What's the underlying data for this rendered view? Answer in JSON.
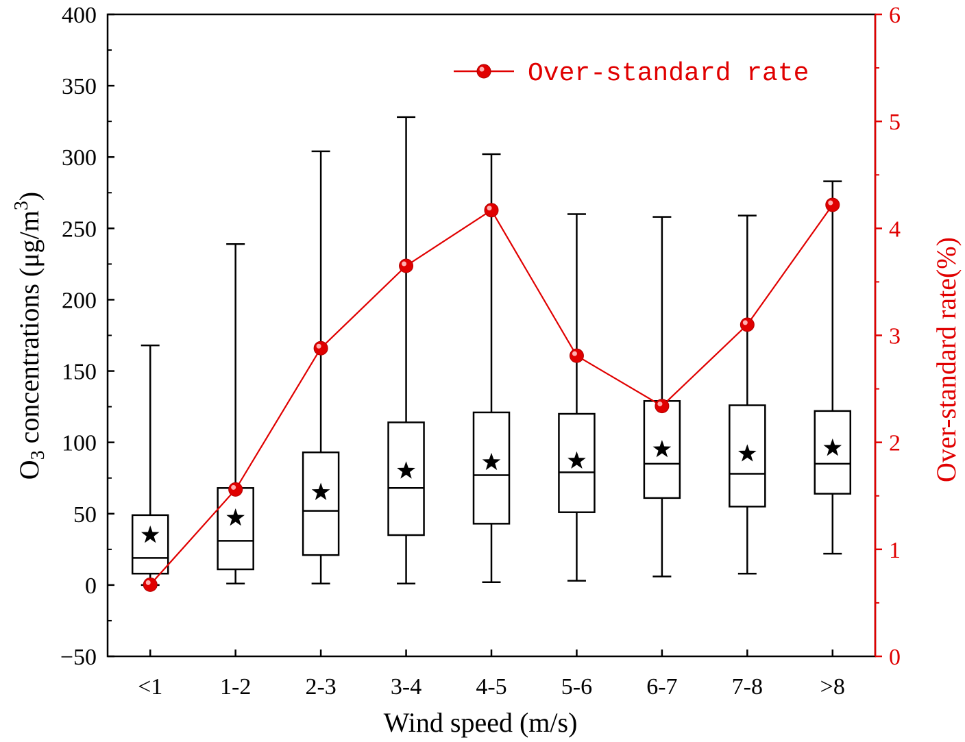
{
  "chart_data": {
    "type": "box+line",
    "xlabel": "Wind speed (m/s)",
    "ylabel_prefix": "O",
    "ylabel_sub": "3",
    "ylabel_mid": " concentrations (μg/m",
    "ylabel_sup": "3",
    "ylabel_end": ")",
    "y2label": "Over-standard rate(%)",
    "categories": [
      "<1",
      "1-2",
      "2-3",
      "3-4",
      "4-5",
      "5-6",
      "6-7",
      "7-8",
      ">8"
    ],
    "ylim": [
      -50,
      400
    ],
    "y_ticks": [
      -50,
      0,
      50,
      100,
      150,
      200,
      250,
      300,
      350,
      400
    ],
    "y_tick_labels": [
      "−50",
      "0",
      "50",
      "100",
      "150",
      "200",
      "250",
      "300",
      "350",
      "400"
    ],
    "y2lim": [
      0,
      6
    ],
    "y2_ticks": [
      0,
      1,
      2,
      3,
      4,
      5,
      6
    ],
    "y2_tick_labels": [
      "0",
      "1",
      "2",
      "3",
      "4",
      "5",
      "6"
    ],
    "boxes": [
      {
        "category": "<1",
        "whisker_low": 0,
        "q1": 8,
        "median": 19,
        "q3": 49,
        "whisker_high": 168,
        "mean": 35
      },
      {
        "category": "1-2",
        "whisker_low": 1,
        "q1": 11,
        "median": 31,
        "q3": 68,
        "whisker_high": 239,
        "mean": 47
      },
      {
        "category": "2-3",
        "whisker_low": 1,
        "q1": 21,
        "median": 52,
        "q3": 93,
        "whisker_high": 304,
        "mean": 65
      },
      {
        "category": "3-4",
        "whisker_low": 1,
        "q1": 35,
        "median": 68,
        "q3": 114,
        "whisker_high": 328,
        "mean": 80
      },
      {
        "category": "4-5",
        "whisker_low": 2,
        "q1": 43,
        "median": 77,
        "q3": 121,
        "whisker_high": 302,
        "mean": 86
      },
      {
        "category": "5-6",
        "whisker_low": 3,
        "q1": 51,
        "median": 79,
        "q3": 120,
        "whisker_high": 260,
        "mean": 87
      },
      {
        "category": "6-7",
        "whisker_low": 6,
        "q1": 61,
        "median": 85,
        "q3": 129,
        "whisker_high": 258,
        "mean": 95
      },
      {
        "category": "7-8",
        "whisker_low": 8,
        "q1": 55,
        "median": 78,
        "q3": 126,
        "whisker_high": 259,
        "mean": 92
      },
      {
        "category": ">8",
        "whisker_low": 22,
        "q1": 64,
        "median": 85,
        "q3": 122,
        "whisker_high": 283,
        "mean": 96
      }
    ],
    "series": [
      {
        "name": "Over-standard rate",
        "axis": "right",
        "values": [
          0.67,
          1.56,
          2.88,
          3.65,
          4.17,
          2.81,
          2.34,
          3.1,
          4.22
        ]
      }
    ],
    "legend": {
      "label": "Over-standard rate",
      "placement": "top-right"
    },
    "colors": {
      "box": "#000000",
      "series": "#e00000"
    }
  }
}
